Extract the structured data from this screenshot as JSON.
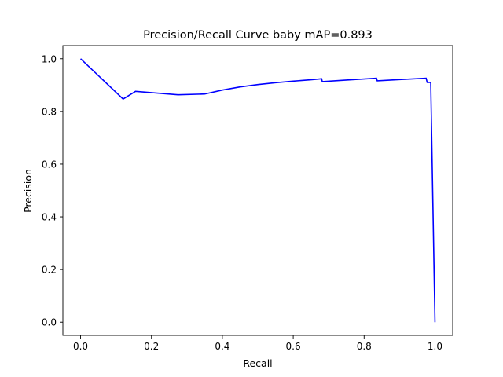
{
  "chart_data": {
    "type": "line",
    "title": "Precision/Recall Curve baby mAP=0.893",
    "xlabel": "Recall",
    "ylabel": "Precision",
    "xlim": [
      -0.05,
      1.05
    ],
    "ylim": [
      -0.05,
      1.05
    ],
    "xticks": [
      0.0,
      0.2,
      0.4,
      0.6,
      0.8,
      1.0
    ],
    "yticks": [
      0.0,
      0.2,
      0.4,
      0.6,
      0.8,
      1.0
    ],
    "grid": false,
    "series": [
      {
        "color": "#0000ff",
        "points": [
          [
            0.0,
            1.0
          ],
          [
            0.12,
            0.847
          ],
          [
            0.155,
            0.876
          ],
          [
            0.275,
            0.863
          ],
          [
            0.35,
            0.866
          ],
          [
            0.4,
            0.881
          ],
          [
            0.45,
            0.893
          ],
          [
            0.5,
            0.902
          ],
          [
            0.55,
            0.909
          ],
          [
            0.6,
            0.915
          ],
          [
            0.65,
            0.92
          ],
          [
            0.68,
            0.924
          ],
          [
            0.682,
            0.913
          ],
          [
            0.75,
            0.919
          ],
          [
            0.835,
            0.926
          ],
          [
            0.837,
            0.916
          ],
          [
            0.9,
            0.921
          ],
          [
            0.975,
            0.926
          ],
          [
            0.978,
            0.91
          ],
          [
            0.988,
            0.91
          ],
          [
            1.0,
            0.0
          ]
        ]
      }
    ]
  }
}
